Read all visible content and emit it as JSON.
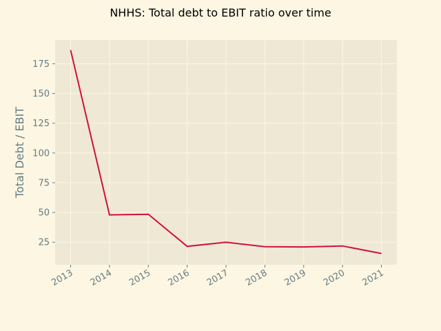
{
  "chart_data": {
    "type": "line",
    "title": "NHHS: Total debt to EBIT ratio over time",
    "xlabel": "",
    "ylabel": "Total Debt / EBIT",
    "x": [
      "2013",
      "2014",
      "2015",
      "2016",
      "2017",
      "2018",
      "2019",
      "2020",
      "2021"
    ],
    "series": [
      {
        "values": [
          186.5,
          48.0,
          48.5,
          21.5,
          25.0,
          21.2,
          21.0,
          21.8,
          15.5
        ]
      }
    ],
    "yticks": [
      25,
      50,
      75,
      100,
      125,
      150,
      175
    ],
    "ylim": [
      6.0,
      195.0
    ],
    "grid": true,
    "colors": {
      "figure_bg": "#fdf6e3",
      "plot_bg": "#eee8d5",
      "line": "#d0103a",
      "text": "#657b83"
    }
  }
}
